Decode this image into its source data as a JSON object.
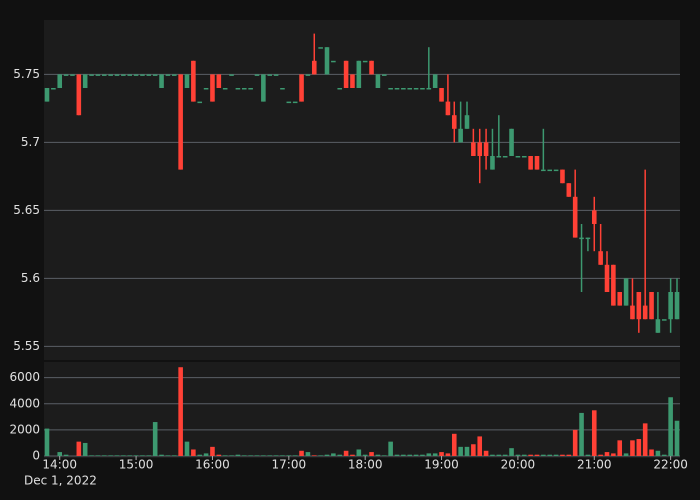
{
  "chart_data": {
    "type": "candlestick",
    "x": [
      "13:50",
      "13:55",
      "14:00",
      "14:05",
      "14:10",
      "14:15",
      "14:20",
      "14:25",
      "14:30",
      "14:35",
      "14:40",
      "14:45",
      "14:50",
      "14:55",
      "15:00",
      "15:05",
      "15:10",
      "15:15",
      "15:20",
      "15:25",
      "15:30",
      "15:35",
      "15:40",
      "15:45",
      "15:50",
      "15:55",
      "16:00",
      "16:05",
      "16:10",
      "16:15",
      "16:20",
      "16:25",
      "16:30",
      "16:35",
      "16:40",
      "16:45",
      "16:50",
      "16:55",
      "17:00",
      "17:05",
      "17:10",
      "17:15",
      "17:20",
      "17:25",
      "17:30",
      "17:35",
      "17:40",
      "17:45",
      "17:50",
      "17:55",
      "18:00",
      "18:05",
      "18:10",
      "18:15",
      "18:20",
      "18:25",
      "18:30",
      "18:35",
      "18:40",
      "18:45",
      "18:50",
      "18:55",
      "19:00",
      "19:05",
      "19:10",
      "19:15",
      "19:20",
      "19:25",
      "19:30",
      "19:35",
      "19:40",
      "19:45",
      "19:50",
      "19:55",
      "20:00",
      "20:05",
      "20:10",
      "20:15",
      "20:20",
      "20:25",
      "20:30",
      "20:35",
      "20:40",
      "20:45",
      "20:50",
      "20:55",
      "21:00",
      "21:05",
      "21:10",
      "21:15",
      "21:20",
      "21:25",
      "21:30",
      "21:35",
      "21:40",
      "21:45",
      "21:50",
      "21:55",
      "22:00",
      "22:05"
    ],
    "open": [
      5.73,
      5.74,
      5.74,
      5.75,
      5.75,
      5.75,
      5.74,
      5.75,
      5.75,
      5.75,
      5.75,
      5.75,
      5.75,
      5.75,
      5.75,
      5.75,
      5.75,
      5.75,
      5.74,
      5.75,
      5.75,
      5.75,
      5.74,
      5.76,
      5.73,
      5.74,
      5.75,
      5.75,
      5.74,
      5.75,
      5.74,
      5.74,
      5.74,
      5.75,
      5.73,
      5.75,
      5.75,
      5.74,
      5.73,
      5.73,
      5.75,
      5.75,
      5.76,
      5.77,
      5.75,
      5.76,
      5.74,
      5.76,
      5.75,
      5.74,
      5.76,
      5.76,
      5.74,
      5.75,
      5.74,
      5.74,
      5.74,
      5.74,
      5.74,
      5.74,
      5.74,
      5.74,
      5.74,
      5.73,
      5.72,
      5.7,
      5.71,
      5.7,
      5.7,
      5.7,
      5.68,
      5.69,
      5.69,
      5.69,
      5.69,
      5.69,
      5.69,
      5.69,
      5.68,
      5.68,
      5.68,
      5.68,
      5.67,
      5.66,
      5.63,
      5.63,
      5.65,
      5.62,
      5.61,
      5.61,
      5.59,
      5.58,
      5.58,
      5.59,
      5.58,
      5.59,
      5.56,
      5.57,
      5.57,
      5.57
    ],
    "high": [
      5.74,
      5.74,
      5.75,
      5.75,
      5.75,
      5.75,
      5.75,
      5.75,
      5.75,
      5.75,
      5.75,
      5.75,
      5.75,
      5.75,
      5.75,
      5.75,
      5.75,
      5.75,
      5.75,
      5.75,
      5.75,
      5.75,
      5.75,
      5.76,
      5.73,
      5.74,
      5.75,
      5.75,
      5.74,
      5.75,
      5.74,
      5.74,
      5.74,
      5.75,
      5.75,
      5.75,
      5.75,
      5.74,
      5.73,
      5.73,
      5.75,
      5.75,
      5.78,
      5.77,
      5.77,
      5.76,
      5.74,
      5.76,
      5.75,
      5.76,
      5.76,
      5.76,
      5.75,
      5.75,
      5.74,
      5.74,
      5.74,
      5.74,
      5.74,
      5.74,
      5.77,
      5.75,
      5.74,
      5.75,
      5.73,
      5.73,
      5.73,
      5.71,
      5.71,
      5.71,
      5.71,
      5.72,
      5.69,
      5.71,
      5.69,
      5.69,
      5.69,
      5.69,
      5.71,
      5.68,
      5.68,
      5.68,
      5.67,
      5.68,
      5.64,
      5.63,
      5.66,
      5.64,
      5.62,
      5.61,
      5.59,
      5.6,
      5.6,
      5.59,
      5.68,
      5.59,
      5.59,
      5.57,
      5.6,
      5.6
    ],
    "low": [
      5.73,
      5.74,
      5.74,
      5.75,
      5.75,
      5.72,
      5.74,
      5.75,
      5.75,
      5.75,
      5.75,
      5.75,
      5.75,
      5.75,
      5.75,
      5.75,
      5.75,
      5.75,
      5.74,
      5.75,
      5.75,
      5.68,
      5.74,
      5.73,
      5.73,
      5.74,
      5.73,
      5.74,
      5.74,
      5.75,
      5.74,
      5.74,
      5.74,
      5.75,
      5.73,
      5.75,
      5.75,
      5.74,
      5.73,
      5.73,
      5.73,
      5.75,
      5.75,
      5.77,
      5.75,
      5.76,
      5.74,
      5.74,
      5.74,
      5.74,
      5.76,
      5.75,
      5.74,
      5.75,
      5.74,
      5.74,
      5.74,
      5.74,
      5.74,
      5.74,
      5.74,
      5.74,
      5.73,
      5.72,
      5.7,
      5.7,
      5.71,
      5.69,
      5.67,
      5.68,
      5.68,
      5.69,
      5.69,
      5.69,
      5.69,
      5.69,
      5.68,
      5.68,
      5.68,
      5.68,
      5.68,
      5.67,
      5.66,
      5.63,
      5.59,
      5.62,
      5.62,
      5.61,
      5.59,
      5.58,
      5.58,
      5.58,
      5.57,
      5.56,
      5.57,
      5.57,
      5.56,
      5.57,
      5.56,
      5.57
    ],
    "close": [
      5.74,
      5.74,
      5.75,
      5.75,
      5.75,
      5.72,
      5.75,
      5.75,
      5.75,
      5.75,
      5.75,
      5.75,
      5.75,
      5.75,
      5.75,
      5.75,
      5.75,
      5.75,
      5.75,
      5.75,
      5.75,
      5.68,
      5.75,
      5.73,
      5.73,
      5.74,
      5.73,
      5.74,
      5.74,
      5.75,
      5.74,
      5.74,
      5.74,
      5.75,
      5.75,
      5.75,
      5.75,
      5.74,
      5.73,
      5.73,
      5.73,
      5.75,
      5.75,
      5.77,
      5.77,
      5.76,
      5.74,
      5.74,
      5.74,
      5.76,
      5.76,
      5.75,
      5.75,
      5.75,
      5.74,
      5.74,
      5.74,
      5.74,
      5.74,
      5.74,
      5.74,
      5.75,
      5.73,
      5.72,
      5.71,
      5.71,
      5.72,
      5.69,
      5.69,
      5.69,
      5.69,
      5.69,
      5.69,
      5.71,
      5.69,
      5.69,
      5.68,
      5.68,
      5.68,
      5.68,
      5.68,
      5.67,
      5.66,
      5.63,
      5.63,
      5.63,
      5.64,
      5.61,
      5.59,
      5.58,
      5.58,
      5.6,
      5.57,
      5.57,
      5.57,
      5.57,
      5.57,
      5.57,
      5.59,
      5.59
    ],
    "volume": [
      2100,
      0,
      300,
      100,
      0,
      1100,
      1000,
      50,
      50,
      50,
      50,
      50,
      50,
      50,
      50,
      50,
      50,
      2600,
      100,
      50,
      50,
      6800,
      1100,
      500,
      100,
      200,
      700,
      100,
      50,
      50,
      100,
      50,
      50,
      50,
      50,
      50,
      50,
      50,
      50,
      50,
      400,
      300,
      50,
      50,
      100,
      200,
      100,
      400,
      100,
      500,
      100,
      300,
      100,
      50,
      1100,
      100,
      100,
      100,
      100,
      100,
      200,
      200,
      300,
      200,
      1700,
      700,
      700,
      900,
      1500,
      400,
      100,
      100,
      100,
      600,
      100,
      100,
      100,
      100,
      100,
      100,
      100,
      100,
      100,
      2000,
      3300,
      100,
      3500,
      100,
      300,
      200,
      1200,
      200,
      1200,
      1300,
      2500,
      500,
      400,
      100,
      4500,
      2700
    ],
    "up_color": "#3d9970",
    "down_color": "#ff4136",
    "ylim": [
      5.54,
      5.79
    ],
    "yticks": [
      5.55,
      5.6,
      5.65,
      5.7,
      5.75
    ],
    "volume_ylim": [
      0,
      7200
    ],
    "volume_yticks": [
      0,
      2000,
      4000,
      6000
    ],
    "xticks": [
      "14:00",
      "15:00",
      "16:00",
      "17:00",
      "18:00",
      "19:00",
      "20:00",
      "21:00",
      "22:00"
    ],
    "date_label": "Dec 1, 2022",
    "grid": true
  }
}
